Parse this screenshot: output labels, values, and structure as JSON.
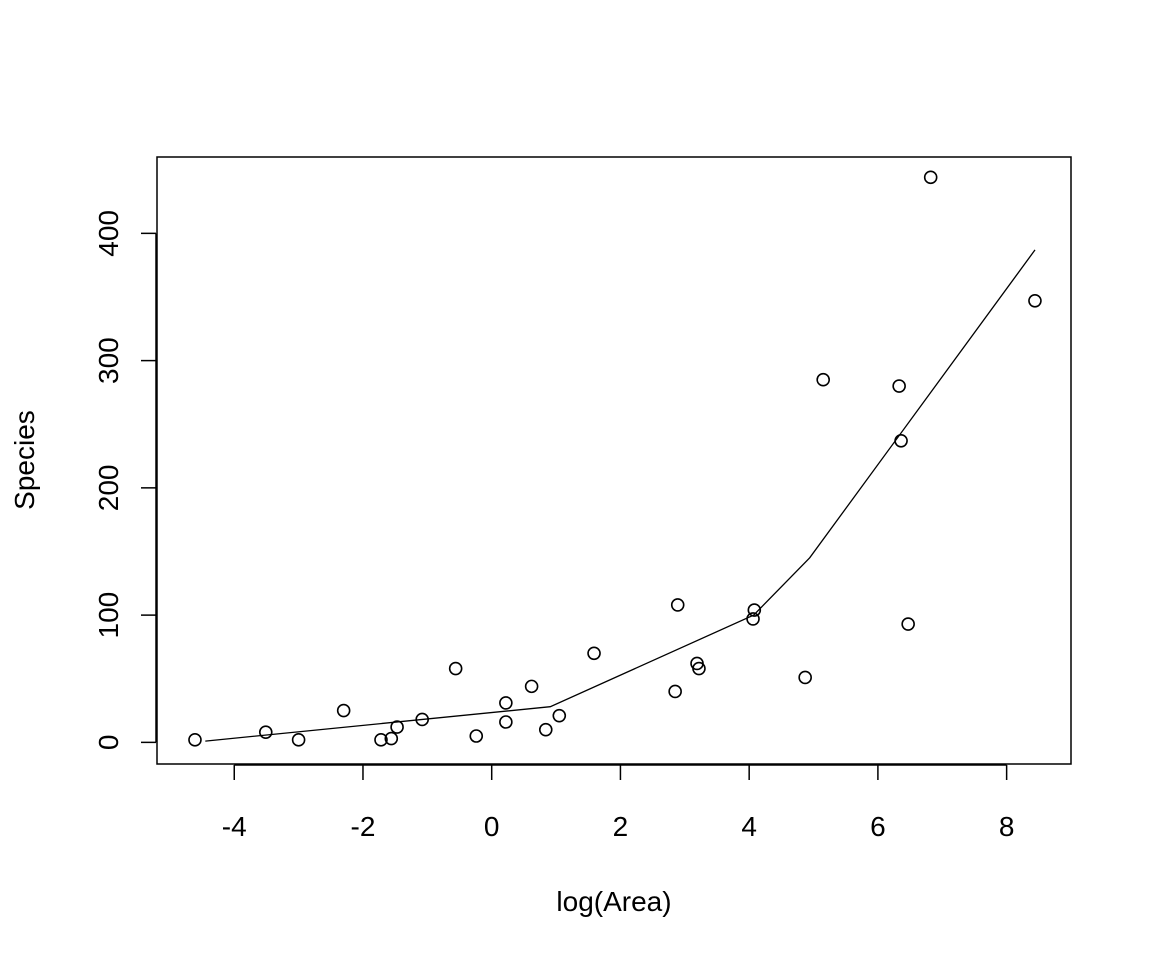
{
  "chart_data": {
    "type": "scatter",
    "xlabel": "log(Area)",
    "ylabel": "Species",
    "xlim": [
      -5.2,
      9.0
    ],
    "ylim": [
      -17,
      460
    ],
    "x_ticks": [
      -4,
      -2,
      0,
      2,
      4,
      6,
      8
    ],
    "y_ticks": [
      0,
      100,
      200,
      300,
      400
    ],
    "grid": false,
    "points": [
      {
        "x": -4.61,
        "y": 2
      },
      {
        "x": -3.51,
        "y": 8
      },
      {
        "x": -3.0,
        "y": 2
      },
      {
        "x": -2.3,
        "y": 25
      },
      {
        "x": -1.72,
        "y": 2
      },
      {
        "x": -1.56,
        "y": 3
      },
      {
        "x": -1.47,
        "y": 12
      },
      {
        "x": -1.08,
        "y": 18
      },
      {
        "x": -0.56,
        "y": 58
      },
      {
        "x": -0.24,
        "y": 5
      },
      {
        "x": 0.22,
        "y": 16
      },
      {
        "x": 0.22,
        "y": 31
      },
      {
        "x": 0.62,
        "y": 44
      },
      {
        "x": 0.84,
        "y": 10
      },
      {
        "x": 1.05,
        "y": 21
      },
      {
        "x": 1.59,
        "y": 70
      },
      {
        "x": 2.85,
        "y": 40
      },
      {
        "x": 2.89,
        "y": 108
      },
      {
        "x": 3.19,
        "y": 62
      },
      {
        "x": 3.22,
        "y": 58
      },
      {
        "x": 4.06,
        "y": 97
      },
      {
        "x": 4.08,
        "y": 104
      },
      {
        "x": 4.87,
        "y": 51
      },
      {
        "x": 5.15,
        "y": 285
      },
      {
        "x": 6.33,
        "y": 280
      },
      {
        "x": 6.36,
        "y": 237
      },
      {
        "x": 6.47,
        "y": 93
      },
      {
        "x": 6.82,
        "y": 444
      },
      {
        "x": 8.44,
        "y": 347
      }
    ],
    "fit_line": {
      "x": [
        -4.45,
        0.91,
        4.07,
        4.94,
        8.44
      ],
      "y": [
        1,
        28,
        100,
        145,
        387
      ]
    }
  }
}
